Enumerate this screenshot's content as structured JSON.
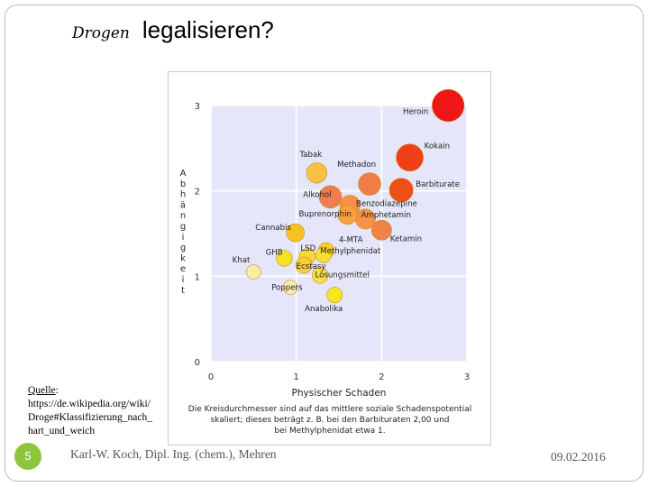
{
  "slide": {
    "title_script": "Drogen",
    "title_main": "legalisieren?",
    "source_label": "Quelle",
    "source_colon": ":",
    "source_url": "https://de.wikipedia.org/wiki/Droge#Klassifizierung_nach_hart_und_weich",
    "page_number": "5",
    "footer": "Karl-W. Koch, Dipl. Ing. (chem.), Mehren",
    "date": "09.02.2016"
  },
  "chart_data": {
    "type": "scatter",
    "title": "",
    "xlabel": "Physischer Schaden",
    "ylabel_letters": [
      "A",
      "b",
      "h",
      "ä",
      "n",
      "g",
      "i",
      "g",
      "k",
      "e",
      "i",
      "t"
    ],
    "xlim": [
      0,
      3
    ],
    "ylim": [
      0,
      3
    ],
    "xticks": [
      "0",
      "1",
      "2",
      "3"
    ],
    "yticks": [
      "0",
      "1",
      "2",
      "3"
    ],
    "caption_lines": [
      "Die Kreisdurchmesser sind auf das mittlere soziale Schadenspotential",
      "skaliert; dieses beträgt z. B. bei den Barbituraten 2,00 und",
      "bei Methylphenidat etwa 1."
    ],
    "points": [
      {
        "name": "Heroin",
        "x": 2.78,
        "y": 3.0,
        "harm": 3.0,
        "color": "#f01010",
        "lx": 2.25,
        "ly": 2.9
      },
      {
        "name": "Kokain",
        "x": 2.33,
        "y": 2.39,
        "harm": 2.4,
        "color": "#f03a10",
        "lx": 2.5,
        "ly": 2.5
      },
      {
        "name": "Barbiturate",
        "x": 2.23,
        "y": 2.01,
        "harm": 2.0,
        "color": "#f04a10",
        "lx": 2.4,
        "ly": 2.05
      },
      {
        "name": "Methadon",
        "x": 1.86,
        "y": 2.08,
        "harm": 1.85,
        "color": "#f07a40",
        "lx": 1.48,
        "ly": 2.28
      },
      {
        "name": "Tabak",
        "x": 1.24,
        "y": 2.21,
        "harm": 1.6,
        "color": "#f8c040",
        "lx": 1.04,
        "ly": 2.4
      },
      {
        "name": "Alkohol",
        "x": 1.4,
        "y": 1.93,
        "harm": 1.85,
        "color": "#f07a48",
        "lx": 1.08,
        "ly": 1.93
      },
      {
        "name": "Benzodiazepine",
        "x": 1.63,
        "y": 1.83,
        "harm": 1.6,
        "color": "#f88e40",
        "lx": 1.7,
        "ly": 1.82
      },
      {
        "name": "Buprenorphin",
        "x": 1.6,
        "y": 1.72,
        "harm": 1.45,
        "color": "#f8a03a",
        "lx": 1.03,
        "ly": 1.7
      },
      {
        "name": "Amphetamin",
        "x": 1.81,
        "y": 1.67,
        "harm": 1.55,
        "color": "#f89040",
        "lx": 1.76,
        "ly": 1.69
      },
      {
        "name": "Ketamin",
        "x": 2.0,
        "y": 1.54,
        "harm": 1.55,
        "color": "#f08040",
        "lx": 2.1,
        "ly": 1.41
      },
      {
        "name": "Cannabis",
        "x": 0.99,
        "y": 1.51,
        "harm": 1.3,
        "color": "#f8c018",
        "lx": 0.52,
        "ly": 1.54
      },
      {
        "name": "4-MTA",
        "x": 1.35,
        "y": 1.3,
        "harm": 1.05,
        "color": "#f8d020",
        "lx": 1.5,
        "ly": 1.4
      },
      {
        "name": "Methylphenidat",
        "x": 1.32,
        "y": 1.25,
        "harm": 1.0,
        "color": "#f8e030",
        "lx": 1.28,
        "ly": 1.27
      },
      {
        "name": "LSD",
        "x": 1.13,
        "y": 1.23,
        "harm": 1.1,
        "color": "#f8d830",
        "lx": 1.05,
        "ly": 1.3
      },
      {
        "name": "GHB",
        "x": 0.86,
        "y": 1.21,
        "harm": 1.05,
        "color": "#f8e020",
        "lx": 0.64,
        "ly": 1.25
      },
      {
        "name": "Ecstasy",
        "x": 1.09,
        "y": 1.13,
        "harm": 1.1,
        "color": "#f8d030",
        "lx": 1.0,
        "ly": 1.09
      },
      {
        "name": "Khat",
        "x": 0.5,
        "y": 1.05,
        "harm": 0.85,
        "color": "#f8f0a0",
        "lx": 0.25,
        "ly": 1.16
      },
      {
        "name": "Lösungsmittel",
        "x": 1.28,
        "y": 1.01,
        "harm": 1.05,
        "color": "#f8e040",
        "lx": 1.22,
        "ly": 0.99
      },
      {
        "name": "Poppers",
        "x": 0.93,
        "y": 0.87,
        "harm": 0.85,
        "color": "#f8f0b0",
        "lx": 0.71,
        "ly": 0.84
      },
      {
        "name": "Anabolika",
        "x": 1.45,
        "y": 0.78,
        "harm": 1.0,
        "color": "#f8e818",
        "lx": 1.1,
        "ly": 0.59
      }
    ]
  }
}
